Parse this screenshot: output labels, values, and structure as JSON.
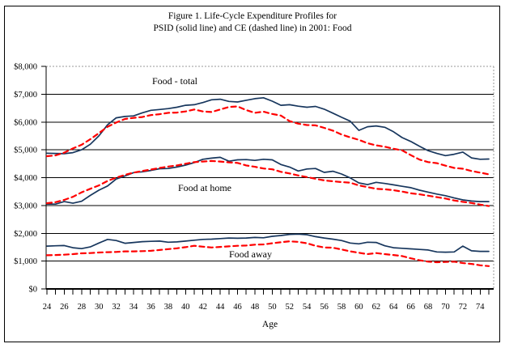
{
  "figure": {
    "title_line1": "Figure 1. Life-Cycle Expenditure Profiles for",
    "title_line2": "PSID (solid line) and CE (dashed line) in 2001: Food"
  },
  "chart_data": {
    "type": "line",
    "title": "Figure 1. Life-Cycle Expenditure Profiles for PSID (solid line) and CE (dashed line) in 2001: Food",
    "xlabel": "Age",
    "ylabel": "",
    "x_range": [
      24,
      75
    ],
    "ylim": [
      0,
      8000
    ],
    "grid": "horizontal",
    "legend": "none (line styles identified in title)",
    "annotations": [
      "Food - total",
      "Food at home",
      "Food away"
    ],
    "y_tick_labels": [
      "$0",
      "$1,000",
      "$2,000",
      "$3,000",
      "$4,000",
      "$5,000",
      "$6,000",
      "$7,000",
      "$8,000"
    ],
    "x_tick_labels": [
      24,
      26,
      28,
      30,
      32,
      34,
      36,
      38,
      40,
      42,
      44,
      46,
      48,
      50,
      52,
      54,
      56,
      58,
      60,
      62,
      64,
      66,
      68,
      70,
      72,
      74
    ],
    "colors": {
      "psid_solid": "#17365D",
      "ce_dashed": "#FF0000",
      "grid": "#000000",
      "plot_border_dotted": "#999999"
    },
    "x": [
      24,
      25,
      26,
      27,
      28,
      29,
      30,
      31,
      32,
      33,
      34,
      35,
      36,
      37,
      38,
      39,
      40,
      41,
      42,
      43,
      44,
      45,
      46,
      47,
      48,
      49,
      50,
      51,
      52,
      53,
      54,
      55,
      56,
      57,
      58,
      59,
      60,
      61,
      62,
      63,
      64,
      65,
      66,
      67,
      68,
      69,
      70,
      71,
      72,
      73,
      74,
      75
    ],
    "series": [
      {
        "key": "psid-food-total",
        "name": "PSID Food - total",
        "style": "solid",
        "values": [
          4880,
          4870,
          4860,
          4900,
          5000,
          5200,
          5500,
          5900,
          6150,
          6200,
          6220,
          6330,
          6420,
          6450,
          6480,
          6530,
          6600,
          6620,
          6700,
          6800,
          6820,
          6740,
          6720,
          6780,
          6840,
          6870,
          6750,
          6600,
          6620,
          6570,
          6530,
          6560,
          6460,
          6320,
          6170,
          6030,
          5700,
          5830,
          5860,
          5810,
          5650,
          5440,
          5300,
          5130,
          4970,
          4870,
          4790,
          4840,
          4920,
          4710,
          4660,
          4670
        ]
      },
      {
        "key": "ce-food-total",
        "name": "CE Food - total",
        "style": "dashed",
        "values": [
          4770,
          4800,
          4900,
          5050,
          5180,
          5380,
          5600,
          5830,
          5980,
          6110,
          6150,
          6180,
          6250,
          6280,
          6330,
          6340,
          6380,
          6450,
          6380,
          6360,
          6450,
          6540,
          6560,
          6430,
          6330,
          6370,
          6290,
          6230,
          6030,
          5940,
          5890,
          5880,
          5790,
          5690,
          5550,
          5450,
          5360,
          5240,
          5160,
          5110,
          5040,
          4980,
          4810,
          4650,
          4560,
          4520,
          4430,
          4350,
          4320,
          4240,
          4180,
          4120
        ]
      },
      {
        "key": "psid-food-at-home",
        "name": "PSID Food at home",
        "style": "solid",
        "values": [
          3050,
          3050,
          3140,
          3080,
          3150,
          3360,
          3550,
          3700,
          3950,
          4060,
          4180,
          4210,
          4260,
          4320,
          4330,
          4380,
          4450,
          4540,
          4660,
          4700,
          4730,
          4590,
          4640,
          4650,
          4620,
          4660,
          4640,
          4470,
          4380,
          4240,
          4310,
          4330,
          4190,
          4230,
          4130,
          3990,
          3810,
          3750,
          3830,
          3790,
          3740,
          3690,
          3640,
          3550,
          3480,
          3410,
          3350,
          3270,
          3200,
          3160,
          3140,
          3140
        ]
      },
      {
        "key": "ce-food-at-home",
        "name": "CE Food at home",
        "style": "dashed",
        "values": [
          3080,
          3120,
          3200,
          3310,
          3470,
          3600,
          3720,
          3880,
          4000,
          4100,
          4180,
          4240,
          4290,
          4350,
          4400,
          4440,
          4500,
          4560,
          4580,
          4600,
          4580,
          4550,
          4530,
          4440,
          4390,
          4330,
          4300,
          4210,
          4150,
          4080,
          4020,
          3960,
          3900,
          3870,
          3840,
          3820,
          3720,
          3660,
          3600,
          3580,
          3550,
          3500,
          3440,
          3400,
          3350,
          3300,
          3250,
          3180,
          3130,
          3090,
          3030,
          2980
        ]
      },
      {
        "key": "psid-food-away",
        "name": "PSID Food away",
        "style": "solid",
        "values": [
          1540,
          1550,
          1560,
          1480,
          1450,
          1510,
          1650,
          1780,
          1740,
          1640,
          1670,
          1700,
          1710,
          1720,
          1680,
          1690,
          1720,
          1750,
          1780,
          1790,
          1810,
          1830,
          1820,
          1830,
          1850,
          1840,
          1890,
          1920,
          1960,
          1970,
          1950,
          1880,
          1830,
          1790,
          1740,
          1650,
          1620,
          1680,
          1670,
          1550,
          1480,
          1460,
          1440,
          1420,
          1400,
          1330,
          1320,
          1330,
          1540,
          1370,
          1350,
          1350
        ]
      },
      {
        "key": "ce-food-away",
        "name": "CE Food away",
        "style": "dashed",
        "values": [
          1210,
          1220,
          1230,
          1250,
          1280,
          1290,
          1310,
          1320,
          1330,
          1350,
          1350,
          1360,
          1370,
          1400,
          1430,
          1460,
          1500,
          1550,
          1520,
          1490,
          1510,
          1530,
          1550,
          1560,
          1590,
          1600,
          1640,
          1680,
          1710,
          1690,
          1640,
          1550,
          1490,
          1480,
          1420,
          1350,
          1300,
          1250,
          1290,
          1250,
          1220,
          1180,
          1100,
          1030,
          980,
          960,
          970,
          980,
          930,
          900,
          850,
          820
        ]
      }
    ]
  }
}
